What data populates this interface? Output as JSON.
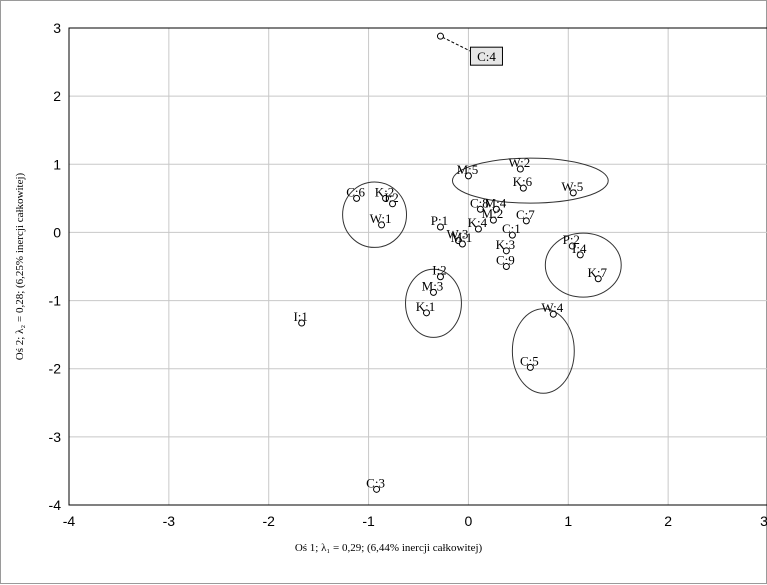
{
  "chart_data": {
    "type": "scatter",
    "xlabel": "Oś 1; λ₁ = 0,29; (6,44% inercji całkowitej)",
    "ylabel": "Oś 2; λ₂ = 0,28; (6,25% inercji całkowitej)",
    "xlim": [
      -4,
      3
    ],
    "ylim": [
      -4,
      3
    ],
    "xticks": [
      -4,
      -3,
      -2,
      -1,
      0,
      1,
      2,
      3
    ],
    "yticks": [
      -4,
      -3,
      -2,
      -1,
      0,
      1,
      2,
      3
    ],
    "xtick_labels": [
      "-4",
      "-3",
      "-2",
      "-1",
      "0",
      "1",
      "2",
      "3"
    ],
    "ytick_labels": [
      "-4",
      "-3",
      "-2",
      "-1",
      "0",
      "1",
      "2",
      "3"
    ],
    "grid": true,
    "points": [
      {
        "label": "C:4",
        "x": -0.28,
        "y": 2.88,
        "boxed": true
      },
      {
        "label": "M:5",
        "x": 0.0,
        "y": 0.83
      },
      {
        "label": "W:2",
        "x": 0.52,
        "y": 0.93
      },
      {
        "label": "K:6",
        "x": 0.55,
        "y": 0.65
      },
      {
        "label": "W:5",
        "x": 1.05,
        "y": 0.58
      },
      {
        "label": "C:6",
        "x": -1.12,
        "y": 0.5
      },
      {
        "label": "K:2",
        "x": -0.83,
        "y": 0.5
      },
      {
        "label": "I:2",
        "x": -0.76,
        "y": 0.42
      },
      {
        "label": "W:1",
        "x": -0.87,
        "y": 0.11
      },
      {
        "label": "P:1",
        "x": -0.28,
        "y": 0.08
      },
      {
        "label": "C:8",
        "x": 0.12,
        "y": 0.34
      },
      {
        "label": "M:4",
        "x": 0.28,
        "y": 0.34
      },
      {
        "label": "M:2",
        "x": 0.25,
        "y": 0.18
      },
      {
        "label": "C:7",
        "x": 0.58,
        "y": 0.17
      },
      {
        "label": "C:1",
        "x": 0.44,
        "y": -0.04
      },
      {
        "label": "K:4",
        "x": 0.1,
        "y": 0.05
      },
      {
        "label": "W:3",
        "x": -0.1,
        "y": -0.12
      },
      {
        "label": "M:1",
        "x": -0.06,
        "y": -0.17
      },
      {
        "label": "K:3",
        "x": 0.38,
        "y": -0.27
      },
      {
        "label": "C:9",
        "x": 0.38,
        "y": -0.5
      },
      {
        "label": "P:2",
        "x": 1.04,
        "y": -0.2
      },
      {
        "label": "I:4",
        "x": 1.12,
        "y": -0.33
      },
      {
        "label": "K:7",
        "x": 1.3,
        "y": -0.68
      },
      {
        "label": "I:2",
        "x": -0.28,
        "y": -0.65
      },
      {
        "label": "M:3",
        "x": -0.35,
        "y": -0.88
      },
      {
        "label": "K:1",
        "x": -0.42,
        "y": -1.18
      },
      {
        "label": "I:1",
        "x": -1.67,
        "y": -1.33
      },
      {
        "label": "W:4",
        "x": 0.85,
        "y": -1.2
      },
      {
        "label": "C:5",
        "x": 0.62,
        "y": -1.98
      },
      {
        "label": "C:3",
        "x": -0.92,
        "y": -3.77
      }
    ],
    "ellipses": [
      {
        "cx": -0.94,
        "cy": 0.26,
        "rx": 0.32,
        "ry": 0.48
      },
      {
        "cx": 0.62,
        "cy": 0.76,
        "rx": 0.78,
        "ry": 0.33
      },
      {
        "cx": 1.15,
        "cy": -0.48,
        "rx": 0.38,
        "ry": 0.47
      },
      {
        "cx": -0.35,
        "cy": -1.04,
        "rx": 0.28,
        "ry": 0.5
      },
      {
        "cx": 0.75,
        "cy": -1.74,
        "rx": 0.31,
        "ry": 0.62
      }
    ]
  }
}
